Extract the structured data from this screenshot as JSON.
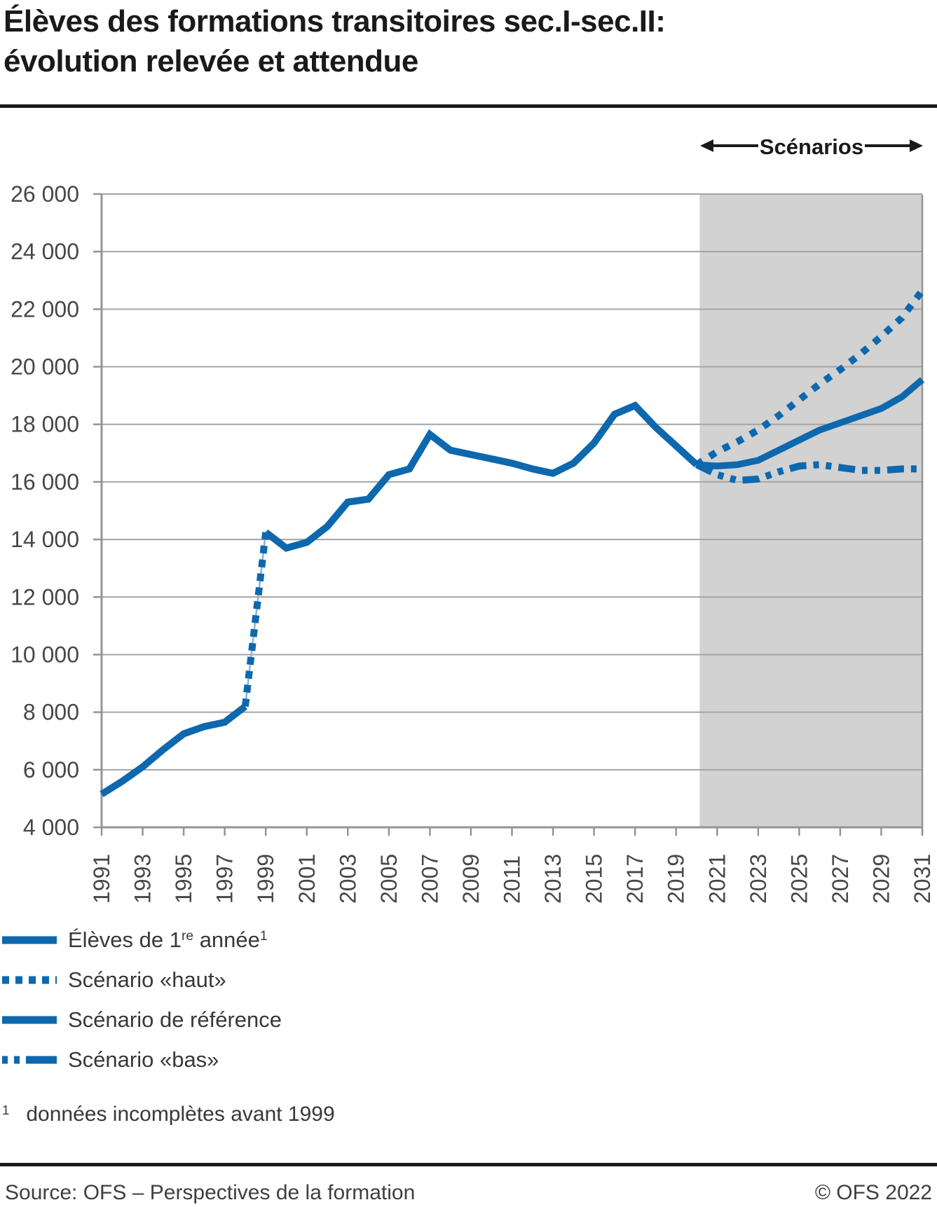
{
  "colors": {
    "accent": "#0d68ae",
    "connector_thin": "#8ab3d6",
    "band": "#d2d2d2",
    "grid": "#a4a4a4",
    "axis": "#949494",
    "title": "#1a1a1a",
    "text": "#383838",
    "axis_text": "#474747"
  },
  "header": {
    "title_lines": [
      "Élèves des formations transitoires sec.I-sec.II:",
      "évolution relevée et attendue"
    ]
  },
  "chart_data": {
    "type": "line",
    "title": "Élèves des formations transitoires sec.I-sec.II: évolution relevée et attendue",
    "ylim": [
      4000,
      26000
    ],
    "grid": true,
    "yticks": {
      "values": [
        4000,
        6000,
        8000,
        10000,
        12000,
        14000,
        16000,
        18000,
        20000,
        22000,
        24000,
        26000
      ],
      "labels": [
        "4 000",
        "6 000",
        "8 000",
        "10 000",
        "12 000",
        "14 000",
        "16 000",
        "18 000",
        "20 000",
        "22 000",
        "24 000",
        "26 000"
      ]
    },
    "xticks": [
      1991,
      1993,
      1995,
      1997,
      1999,
      2001,
      2003,
      2005,
      2007,
      2009,
      2011,
      2013,
      2015,
      2017,
      2019,
      2021,
      2023,
      2025,
      2027,
      2029,
      2031
    ],
    "scenario_band": {
      "label": "Scénarios",
      "from_year": 2020.15,
      "to_year": 2031
    },
    "series": [
      {
        "name": "Élèves de 1re année",
        "style": "solid",
        "years": [
          1991,
          1992,
          1993,
          1994,
          1995,
          1996,
          1997,
          1998,
          1999,
          2000,
          2001,
          2002,
          2003,
          2004,
          2005,
          2006,
          2007,
          2008,
          2009,
          2010,
          2011,
          2012,
          2013,
          2014,
          2015,
          2016,
          2017,
          2018,
          2019,
          2020
        ],
        "values": [
          5150,
          5600,
          6100,
          6700,
          7250,
          7500,
          7650,
          8200,
          14250,
          13700,
          13900,
          14450,
          15300,
          15400,
          16250,
          16450,
          17650,
          17100,
          16950,
          16800,
          16650,
          16450,
          16300,
          16650,
          17350,
          18350,
          18650,
          17900,
          17250,
          16600
        ],
        "note": "tracé plein 1991–1998 et 1999–2020, liaison pointillée 1998–1999"
      },
      {
        "name": "liaison données incomplètes",
        "style": "dotted",
        "years": [
          1998,
          1999
        ],
        "values": [
          8200,
          14250
        ]
      },
      {
        "name": "Scénario «haut»",
        "style": "dotted",
        "years": [
          2020,
          2021,
          2022,
          2023,
          2024,
          2025,
          2026,
          2027,
          2028,
          2029,
          2030,
          2031
        ],
        "values": [
          16600,
          17050,
          17400,
          17800,
          18300,
          18850,
          19400,
          19900,
          20450,
          21050,
          21700,
          22650
        ]
      },
      {
        "name": "Scénario de référence",
        "style": "solid",
        "years": [
          2020,
          2021,
          2022,
          2023,
          2024,
          2025,
          2026,
          2027,
          2028,
          2029,
          2030,
          2031
        ],
        "values": [
          16600,
          16550,
          16600,
          16750,
          17100,
          17450,
          17800,
          18050,
          18300,
          18550,
          18950,
          19550
        ]
      },
      {
        "name": "Scénario «bas»",
        "style": "dashdot",
        "years": [
          2020,
          2021,
          2022,
          2023,
          2024,
          2025,
          2026,
          2027,
          2028,
          2029,
          2030,
          2031
        ],
        "values": [
          16600,
          16250,
          16050,
          16100,
          16350,
          16550,
          16600,
          16500,
          16400,
          16400,
          16450,
          16450
        ]
      }
    ]
  },
  "legend": {
    "items": [
      {
        "style": "solid",
        "parts": [
          {
            "t": "Élèves de 1"
          },
          {
            "t": "re",
            "sup": true
          },
          {
            "t": " année"
          },
          {
            "t": "1",
            "sup": true
          }
        ]
      },
      {
        "style": "dotted",
        "parts": [
          {
            "t": "Scénario «haut»"
          }
        ]
      },
      {
        "style": "solid",
        "parts": [
          {
            "t": "Scénario de référence"
          }
        ]
      },
      {
        "style": "dashdot",
        "parts": [
          {
            "t": "Scénario «bas»"
          }
        ]
      }
    ]
  },
  "footnote": {
    "num": "1",
    "text": "données incomplètes avant 1999"
  },
  "footer": {
    "source": "Source: OFS – Perspectives de la formation",
    "copyright": "© OFS 2022"
  }
}
